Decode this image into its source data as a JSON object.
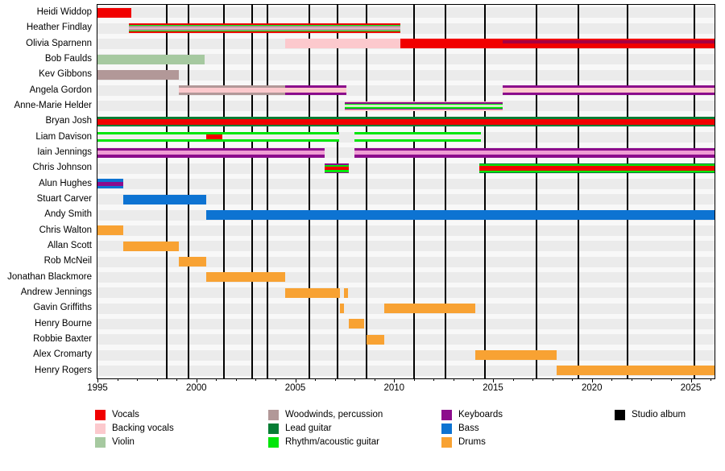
{
  "chart_data": {
    "type": "timeline",
    "description": "Band members timeline with roles shown as colored bars and studio albums as vertical black lines",
    "x_axis": {
      "start": 1995,
      "end": 2026.2,
      "major_ticks": [
        1995,
        2000,
        2005,
        2010,
        2015,
        2020,
        2025
      ],
      "tick_labels": [
        "1995",
        "2000",
        "2005",
        "2010",
        "2015",
        "2020",
        "2025"
      ],
      "minor_step": 1
    },
    "palette": {
      "vocals": "#f10000",
      "backing": "#fcc9cd",
      "violin": "#a6c9a0",
      "woodwinds": "#b29898",
      "lead_guitar": "#067d34",
      "rhythm_guitar": "#00e60a",
      "keyboards": "#8c0c8c",
      "bass": "#0d73d2",
      "drums": "#f8a233",
      "album": "#000000",
      "olivia_dark": "#a80040",
      "iain_pink": "#ef9cd4",
      "liam_pale": "#f2eded",
      "amh_center": "#d6eec6",
      "heather_center": "#e2b2c6"
    },
    "album_lines": [
      1998.5,
      1999.6,
      2001.4,
      2002.8,
      2003.6,
      2005.7,
      2007.15,
      2008.6,
      2011.0,
      2012.6,
      2014.6,
      2017.2,
      2019.3,
      2021.8,
      2025.2
    ],
    "members": [
      {
        "name": "Heidi Widdop",
        "segments": [
          {
            "start": 1995,
            "end": 1996.7,
            "stripes": [
              [
                "vocals",
                1
              ]
            ]
          }
        ]
      },
      {
        "name": "Heather Findlay",
        "segments": [
          {
            "start": 1996.6,
            "end": 2010.3,
            "stripes": [
              [
                "vocals",
                2
              ],
              [
                "rhythm_guitar",
                1.5
              ],
              [
                "woodwinds",
                2
              ],
              [
                "heather_center",
                2.5
              ],
              [
                "woodwinds",
                2
              ],
              [
                "rhythm_guitar",
                1.5
              ],
              [
                "vocals",
                2
              ]
            ]
          }
        ]
      },
      {
        "name": "Olivia Sparnenn",
        "segments": [
          {
            "start": 2004.5,
            "end": 2010.3,
            "stripes": [
              [
                "backing",
                1
              ]
            ]
          },
          {
            "start": 2010.3,
            "end": 2015.5,
            "stripes": [
              [
                "vocals",
                1
              ]
            ]
          },
          {
            "start": 2015.5,
            "end": 2026.2,
            "stripes": [
              [
                "vocals",
                2
              ],
              [
                "olivia_dark",
                3.5
              ],
              [
                "vocals",
                6.5
              ]
            ]
          }
        ]
      },
      {
        "name": "Bob Faulds",
        "segments": [
          {
            "start": 1995,
            "end": 2000.4,
            "stripes": [
              [
                "violin",
                1
              ]
            ]
          }
        ]
      },
      {
        "name": "Kev Gibbons",
        "segments": [
          {
            "start": 1995,
            "end": 1999.1,
            "stripes": [
              [
                "woodwinds",
                1
              ]
            ]
          }
        ]
      },
      {
        "name": "Angela Gordon",
        "segments": [
          {
            "start": 1999.1,
            "end": 2004.5,
            "stripes": [
              [
                "woodwinds",
                3
              ],
              [
                "backing",
                6
              ],
              [
                "woodwinds",
                3
              ]
            ]
          },
          {
            "start": 2004.5,
            "end": 2007.6,
            "stripes": [
              [
                "keyboards",
                3
              ],
              [
                "backing",
                6
              ],
              [
                "keyboards",
                3
              ]
            ]
          },
          {
            "start": 2015.5,
            "end": 2026.2,
            "stripes": [
              [
                "keyboards",
                3
              ],
              [
                "backing",
                6
              ],
              [
                "keyboards",
                3
              ]
            ]
          }
        ]
      },
      {
        "name": "Anne-Marie Helder",
        "segments": [
          {
            "start": 2007.5,
            "end": 2015.5,
            "stripes": [
              [
                "backing",
                1.5
              ],
              [
                "keyboards",
                2
              ],
              [
                "rhythm_guitar",
                2
              ],
              [
                "amh_center",
                3
              ],
              [
                "rhythm_guitar",
                2
              ],
              [
                "keyboards",
                2
              ],
              [
                "backing",
                1.5
              ]
            ]
          }
        ]
      },
      {
        "name": "Bryan Josh",
        "segments": [
          {
            "start": 1995,
            "end": 2026.2,
            "stripes": [
              [
                "lead_guitar",
                2.5
              ],
              [
                "vocals",
                7
              ],
              [
                "lead_guitar",
                2.5
              ]
            ]
          }
        ]
      },
      {
        "name": "Liam Davison",
        "segments": [
          {
            "start": 1995,
            "end": 2000.5,
            "stripes": [
              [
                "rhythm_guitar",
                3
              ],
              [
                "liam_pale",
                6
              ],
              [
                "rhythm_guitar",
                3
              ]
            ]
          },
          {
            "start": 2000.5,
            "end": 2001.3,
            "stripes": [
              [
                "rhythm_guitar",
                3
              ],
              [
                "vocals",
                6
              ],
              [
                "rhythm_guitar",
                3
              ]
            ]
          },
          {
            "start": 2001.3,
            "end": 2007.2,
            "stripes": [
              [
                "rhythm_guitar",
                3
              ],
              [
                "liam_pale",
                6
              ],
              [
                "rhythm_guitar",
                3
              ]
            ]
          },
          {
            "start": 2008,
            "end": 2014.4,
            "stripes": [
              [
                "rhythm_guitar",
                3
              ],
              [
                "liam_pale",
                6
              ],
              [
                "rhythm_guitar",
                3
              ]
            ]
          }
        ]
      },
      {
        "name": "Iain Jennings",
        "segments": [
          {
            "start": 1995,
            "end": 2006.5,
            "stripes": [
              [
                "keyboards",
                3.5
              ],
              [
                "iain_pink",
                5
              ],
              [
                "keyboards",
                3.5
              ]
            ]
          },
          {
            "start": 2008,
            "end": 2026.2,
            "stripes": [
              [
                "keyboards",
                3.5
              ],
              [
                "iain_pink",
                5
              ],
              [
                "keyboards",
                3.5
              ]
            ]
          }
        ]
      },
      {
        "name": "Chris Johnson",
        "segments": [
          {
            "start": 2006.5,
            "end": 2007.7,
            "stripes": [
              [
                "keyboards",
                1.5
              ],
              [
                "rhythm_guitar",
                2.5
              ],
              [
                "vocals",
                4
              ],
              [
                "rhythm_guitar",
                2.5
              ],
              [
                "keyboards",
                1.5
              ]
            ]
          },
          {
            "start": 2014.3,
            "end": 2026.2,
            "stripes": [
              [
                "lead_guitar",
                1
              ],
              [
                "rhythm_guitar",
                2
              ],
              [
                "vocals",
                6
              ],
              [
                "rhythm_guitar",
                2
              ],
              [
                "lead_guitar",
                1
              ]
            ]
          }
        ]
      },
      {
        "name": "Alun Hughes",
        "segments": [
          {
            "start": 1995,
            "end": 1996.3,
            "stripes": [
              [
                "bass",
                3.5
              ],
              [
                "keyboards",
                5
              ],
              [
                "bass",
                3.5
              ]
            ]
          }
        ]
      },
      {
        "name": "Stuart Carver",
        "segments": [
          {
            "start": 1996.3,
            "end": 2000.5,
            "stripes": [
              [
                "bass",
                1
              ]
            ]
          }
        ]
      },
      {
        "name": "Andy Smith",
        "segments": [
          {
            "start": 2000.5,
            "end": 2026.2,
            "stripes": [
              [
                "bass",
                1
              ]
            ]
          }
        ]
      },
      {
        "name": "Chris Walton",
        "segments": [
          {
            "start": 1995,
            "end": 1996.3,
            "stripes": [
              [
                "drums",
                1
              ]
            ]
          }
        ]
      },
      {
        "name": "Allan Scott",
        "segments": [
          {
            "start": 1996.3,
            "end": 1999.1,
            "stripes": [
              [
                "drums",
                1
              ]
            ]
          }
        ]
      },
      {
        "name": "Rob McNeil",
        "segments": [
          {
            "start": 1999.1,
            "end": 2000.5,
            "stripes": [
              [
                "drums",
                1
              ]
            ]
          }
        ]
      },
      {
        "name": "Jonathan Blackmore",
        "segments": [
          {
            "start": 2000.5,
            "end": 2004.5,
            "stripes": [
              [
                "drums",
                1
              ]
            ]
          }
        ]
      },
      {
        "name": "Andrew Jennings",
        "segments": [
          {
            "start": 2004.5,
            "end": 2007.25,
            "stripes": [
              [
                "drums",
                1
              ]
            ]
          },
          {
            "start": 2007.45,
            "end": 2007.65,
            "stripes": [
              [
                "drums",
                1
              ]
            ]
          }
        ]
      },
      {
        "name": "Gavin Griffiths",
        "segments": [
          {
            "start": 2007.25,
            "end": 2007.45,
            "stripes": [
              [
                "drums",
                1
              ]
            ]
          },
          {
            "start": 2009.5,
            "end": 2014.1,
            "stripes": [
              [
                "drums",
                1
              ]
            ]
          }
        ]
      },
      {
        "name": "Henry Bourne",
        "segments": [
          {
            "start": 2007.7,
            "end": 2008.5,
            "stripes": [
              [
                "drums",
                1
              ]
            ]
          }
        ]
      },
      {
        "name": "Robbie Baxter",
        "segments": [
          {
            "start": 2008.6,
            "end": 2009.5,
            "stripes": [
              [
                "drums",
                1
              ]
            ]
          }
        ]
      },
      {
        "name": "Alex Cromarty",
        "segments": [
          {
            "start": 2014.1,
            "end": 2018.2,
            "stripes": [
              [
                "drums",
                1
              ]
            ]
          }
        ]
      },
      {
        "name": "Henry Rogers",
        "segments": [
          {
            "start": 2018.2,
            "end": 2026.2,
            "stripes": [
              [
                "drums",
                1
              ]
            ]
          }
        ]
      }
    ],
    "legend": {
      "columns": [
        {
          "items": [
            {
              "label": "Vocals",
              "color": "vocals"
            },
            {
              "label": "Backing vocals",
              "color": "backing"
            },
            {
              "label": "Violin",
              "color": "violin"
            }
          ]
        },
        {
          "items": [
            {
              "label": "Woodwinds, percussion",
              "color": "woodwinds"
            },
            {
              "label": "Lead guitar",
              "color": "lead_guitar"
            },
            {
              "label": "Rhythm/acoustic guitar",
              "color": "rhythm_guitar"
            }
          ]
        },
        {
          "items": [
            {
              "label": "Keyboards",
              "color": "keyboards"
            },
            {
              "label": "Bass",
              "color": "bass"
            },
            {
              "label": "Drums",
              "color": "drums"
            }
          ]
        },
        {
          "items": [
            {
              "label": "Studio album",
              "color": "album"
            }
          ]
        }
      ]
    }
  }
}
